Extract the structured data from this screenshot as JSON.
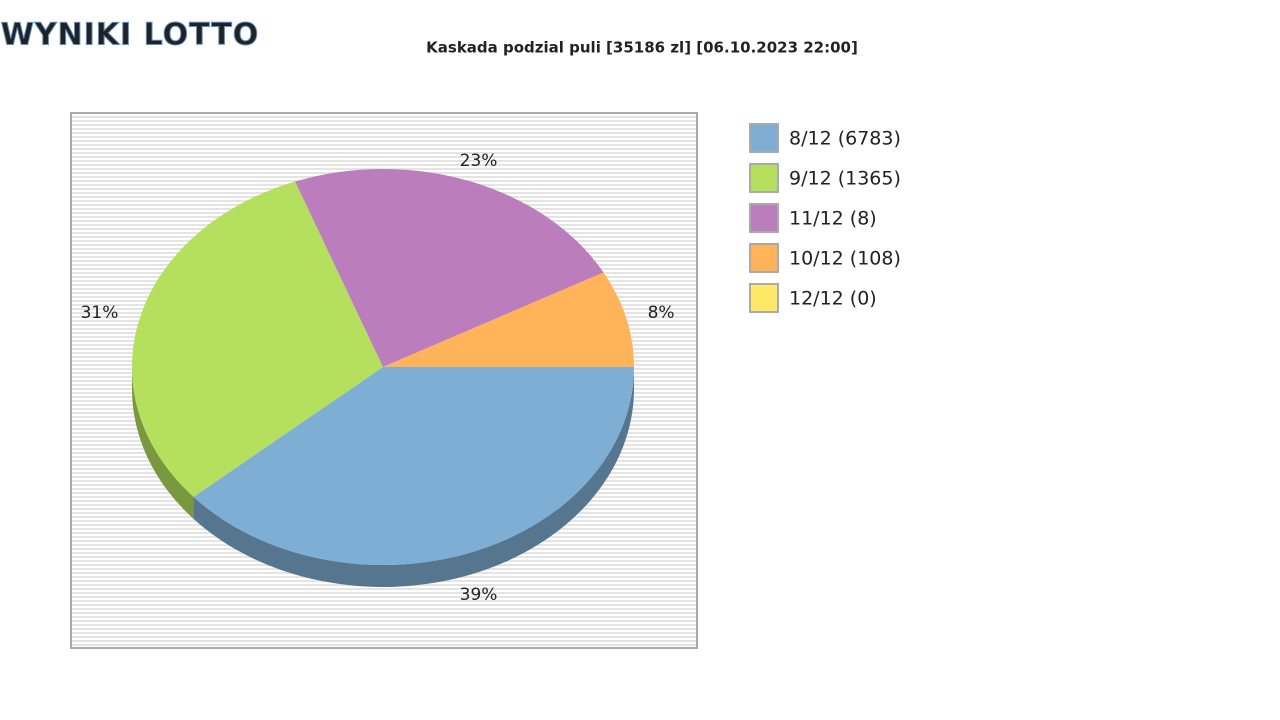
{
  "logo": "WYNIKI LOTTO",
  "chart_data": {
    "type": "pie",
    "title": "Kaskada podzial puli [35186 zl] [06.10.2023 22:00]",
    "categories": [
      "8/12 (6783)",
      "9/12 (1365)",
      "11/12 (8)",
      "10/12 (108)",
      "12/12 (0)"
    ],
    "values": [
      39,
      31,
      23,
      8,
      0
    ],
    "value_labels": [
      "39%",
      "31%",
      "23%",
      "8%",
      null
    ],
    "colors": [
      "#7eaed4",
      "#b4e05e",
      "#bb7dbb",
      "#ffb45a",
      "#ffe866"
    ],
    "legend": "right"
  }
}
